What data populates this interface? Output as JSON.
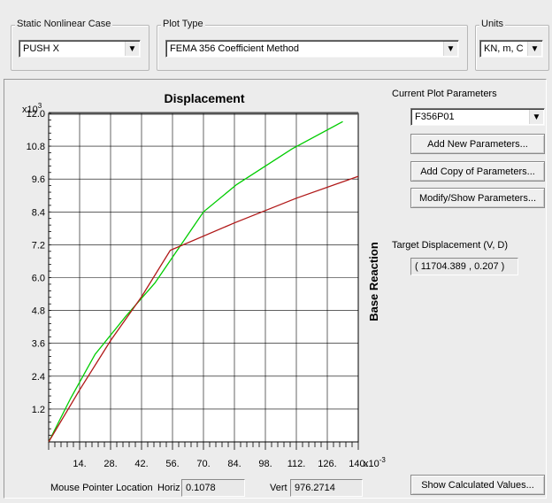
{
  "case_group": {
    "label": "Static Nonlinear Case",
    "value": "PUSH X"
  },
  "plot_type_group": {
    "label": "Plot Type",
    "value": "FEMA 356 Coefficient Method"
  },
  "units_group": {
    "label": "Units",
    "value": "KN, m, C"
  },
  "chart": {
    "title": "Displacement",
    "y_multiplier": "x10",
    "y_multiplier_exp": "3",
    "x_multiplier": "x10",
    "x_multiplier_exp": "-3",
    "ylabel": "Base Reaction"
  },
  "params": {
    "label": "Current Plot Parameters",
    "value": "F356P01",
    "add_new": "Add New Parameters...",
    "add_copy": "Add Copy of Parameters...",
    "modify": "Modify/Show Parameters..."
  },
  "target": {
    "label": "Target Displacement (V, D)",
    "value": "( 11704.389 , 0.207 )"
  },
  "mouse": {
    "label": "Mouse Pointer Location",
    "horiz_label": "Horiz",
    "horiz_value": "0.1078",
    "vert_label": "Vert",
    "vert_value": "976.2714"
  },
  "show_calc": "Show Calculated Values...",
  "icons": {
    "dropdown": "chevron-down-icon"
  },
  "colors": {
    "green_curve": "#00cc00",
    "red_curve": "#b01818",
    "grid": "#000000"
  },
  "chart_data": {
    "type": "line",
    "title": "Displacement",
    "xlabel": "",
    "ylabel": "Base Reaction",
    "x_tick_labels": [
      "14.",
      "28.",
      "42.",
      "56.",
      "70.",
      "84.",
      "98.",
      "112.",
      "126.",
      "140."
    ],
    "y_tick_labels": [
      "1.2",
      "2.4",
      "3.6",
      "4.8",
      "6.0",
      "7.2",
      "8.4",
      "9.6",
      "10.8",
      "12.0"
    ],
    "x_ticks": [
      14,
      28,
      42,
      56,
      70,
      84,
      98,
      112,
      126,
      140
    ],
    "y_ticks": [
      1.2,
      2.4,
      3.6,
      4.8,
      6.0,
      7.2,
      8.4,
      9.6,
      10.8,
      12.0
    ],
    "xlim": [
      0,
      140
    ],
    "ylim": [
      0,
      12.0
    ],
    "grid": true,
    "series": [
      {
        "color": "#00cc00",
        "x": [
          0,
          10,
          21,
          35,
          48,
          70,
          85,
          110,
          133
        ],
        "y": [
          0,
          1.6,
          3.2,
          4.6,
          5.8,
          8.4,
          9.4,
          10.7,
          11.7
        ]
      },
      {
        "color": "#b01818",
        "x": [
          0,
          14,
          28,
          42,
          55,
          84,
          112,
          140
        ],
        "y": [
          0,
          1.9,
          3.7,
          5.3,
          7.0,
          8.0,
          8.9,
          9.7
        ]
      }
    ]
  }
}
